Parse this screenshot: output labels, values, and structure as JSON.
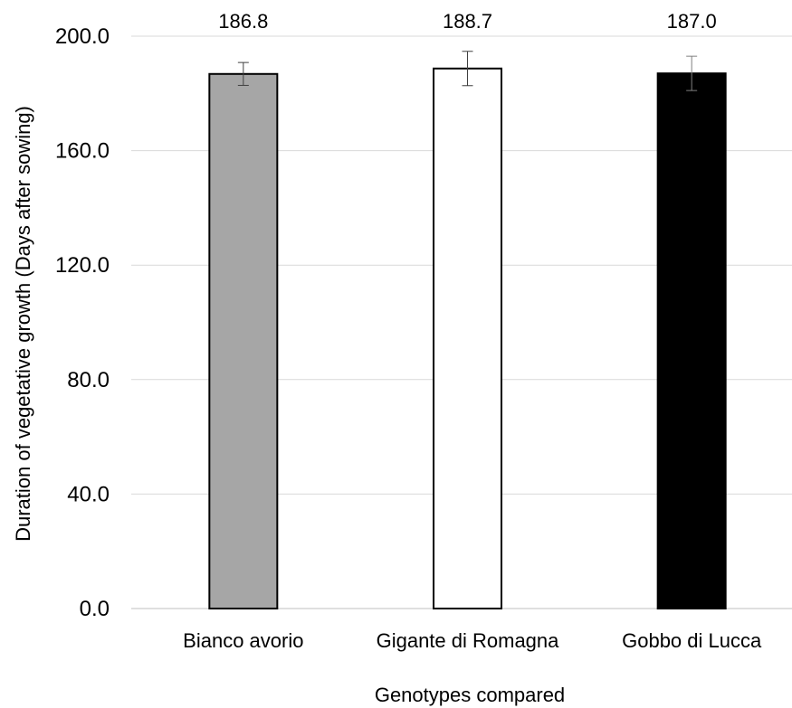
{
  "chart_data": {
    "type": "bar",
    "title": "",
    "xlabel": "Genotypes compared",
    "ylabel": "Duration of vegetative growth (Days after sowing)",
    "ylim": [
      0,
      200
    ],
    "yticks": [
      0,
      40,
      80,
      120,
      160,
      200
    ],
    "ytick_labels": [
      "0.0",
      "40.0",
      "80.0",
      "120.0",
      "160.0",
      "200.0"
    ],
    "grid": true,
    "categories": [
      "Bianco avorio",
      "Gigante di Romagna",
      "Gobbo di Lucca"
    ],
    "values": [
      186.8,
      188.7,
      187.0
    ],
    "value_labels": [
      "186.8",
      "188.7",
      "187.0"
    ],
    "error": [
      4.0,
      6.0,
      6.0
    ],
    "colors": [
      "#a6a6a6",
      "#ffffff",
      "#000000"
    ],
    "bar_edge_color": "#000000",
    "grid_color": "#d9d9d9"
  }
}
